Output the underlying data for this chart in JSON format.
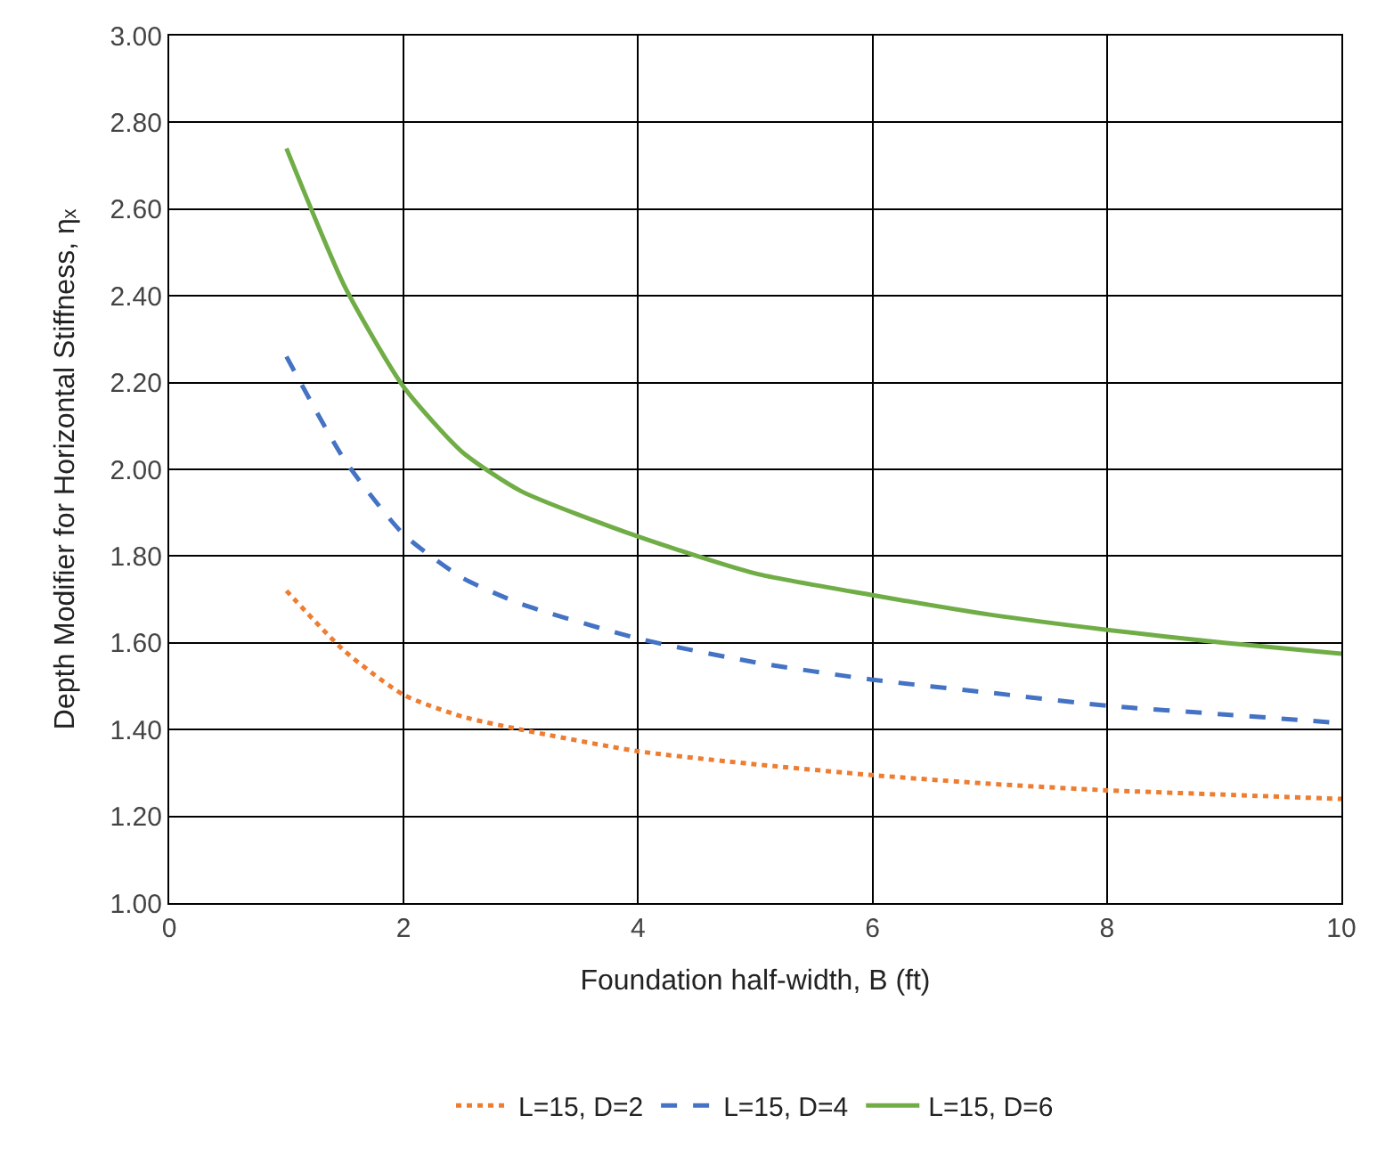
{
  "chart_data": {
    "type": "line",
    "xlabel": "Foundation half-width, B (ft)",
    "ylabel": "Depth Modifier for Horizontal Stiffness, ηₓ",
    "x": [
      1,
      1.5,
      2,
      2.5,
      3,
      4,
      5,
      6,
      7,
      8,
      9,
      10
    ],
    "series": [
      {
        "name": "L=15, D=2",
        "color": "#ed7d31",
        "line_style": "dotted",
        "values": [
          1.72,
          1.58,
          1.48,
          1.43,
          1.4,
          1.35,
          1.32,
          1.295,
          1.275,
          1.26,
          1.25,
          1.24
        ]
      },
      {
        "name": "L=15, D=4",
        "color": "#4472c4",
        "line_style": "dashed",
        "values": [
          2.26,
          2.02,
          1.85,
          1.75,
          1.69,
          1.61,
          1.555,
          1.515,
          1.485,
          1.455,
          1.435,
          1.415
        ]
      },
      {
        "name": "L=15, D=6",
        "color": "#70ad47",
        "line_style": "solid",
        "values": [
          2.74,
          2.42,
          2.19,
          2.04,
          1.95,
          1.845,
          1.76,
          1.71,
          1.665,
          1.63,
          1.6,
          1.575
        ]
      }
    ],
    "xlim": [
      0,
      10
    ],
    "xticks": [
      0,
      2,
      4,
      6,
      8,
      10
    ],
    "ylim": [
      1.0,
      3.0
    ],
    "yticks": [
      {
        "value": 1.0,
        "label": "1.00"
      },
      {
        "value": 1.2,
        "label": "1.20"
      },
      {
        "value": 1.4,
        "label": "1.40"
      },
      {
        "value": 1.6,
        "label": "1.60"
      },
      {
        "value": 1.8,
        "label": "1.80"
      },
      {
        "value": 2.0,
        "label": "2.00"
      },
      {
        "value": 2.2,
        "label": "2.20"
      },
      {
        "value": 2.4,
        "label": "2.40"
      },
      {
        "value": 2.6,
        "label": "2.60"
      },
      {
        "value": 2.8,
        "label": "2.80"
      },
      {
        "value": 3.0,
        "label": "3.00"
      }
    ],
    "grid": true,
    "legend": "bottom",
    "marker": "none"
  }
}
